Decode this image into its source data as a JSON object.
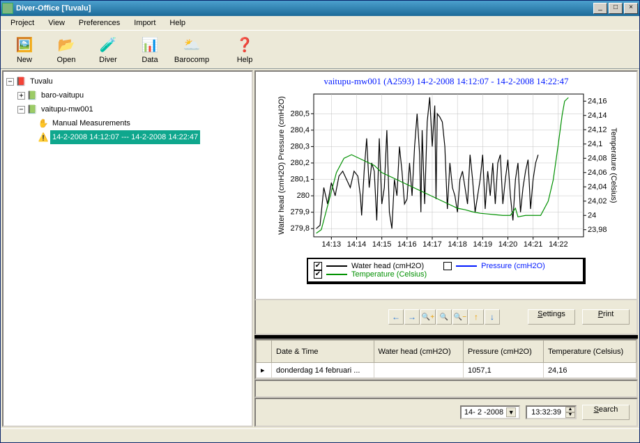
{
  "window": {
    "title": "Diver-Office [Tuvalu]",
    "min_label": "_",
    "max_label": "□",
    "close_label": "×"
  },
  "menu": {
    "items": [
      "Project",
      "View",
      "Preferences",
      "Import",
      "Help"
    ]
  },
  "toolbar": {
    "items": [
      {
        "label": "New",
        "icon": "🖼️",
        "color": "#5aa02c"
      },
      {
        "label": "Open",
        "icon": "📂",
        "color": "#e8b030"
      },
      {
        "label": "Diver",
        "icon": "🧪",
        "color": "#888"
      },
      {
        "label": "Data",
        "icon": "📊",
        "color": "#4a90d9"
      },
      {
        "label": "Barocomp",
        "icon": "🌥️",
        "color": "#e0a020"
      },
      {
        "label": "Help",
        "icon": "❓",
        "color": "#1e6fd6"
      }
    ]
  },
  "tree": {
    "root": {
      "label": "Tuvalu",
      "icon": "📁"
    },
    "n1": {
      "label": "baro-vaitupu",
      "icon": "📁",
      "tw": "+"
    },
    "n2": {
      "label": "vaitupu-mw001",
      "icon": "📁",
      "tw": "−"
    },
    "n2a": {
      "label": "Manual Measurements",
      "icon": "✋"
    },
    "n2b": {
      "label": "14-2-2008 14:12:07  ---  14-2-2008 14:22:47",
      "icon": "⚠️",
      "selected": true
    }
  },
  "chart": {
    "title": "vaitupu-mw001 (A2593)   14-2-2008 14:12:07  -  14-2-2008 14:22:47",
    "title_color": "#0018ff",
    "y1_label": "Water head (cmH2O) Pressure (cmH2O)",
    "y2_label": "Temperature (Celsius)",
    "y1_ticks": [
      "279,8",
      "279,9",
      "280",
      "280,1",
      "280,2",
      "280,3",
      "280,4",
      "280,5"
    ],
    "y1_lim": [
      279.75,
      280.62
    ],
    "y2_ticks": [
      "23,98",
      "24",
      "24,02",
      "24,04",
      "24,06",
      "24,08",
      "24,1",
      "24,12",
      "24,14",
      "24,16"
    ],
    "y2_lim": [
      23.97,
      24.17
    ],
    "x_ticks": [
      "14:13",
      "14:14",
      "14:15",
      "14:16",
      "14:17",
      "14:18",
      "14:19",
      "14:20",
      "14:21",
      "14:22"
    ],
    "x_lim": [
      0,
      10.7
    ],
    "colors": {
      "waterhead": "#000000",
      "pressure": "#0018ff",
      "temperature": "#009000",
      "grid": "#c0c0c0",
      "bg": "#ffffff",
      "axis": "#000000"
    },
    "series_waterhead": [
      [
        0.1,
        279.8
      ],
      [
        0.25,
        279.82
      ],
      [
        0.4,
        280.05
      ],
      [
        0.55,
        279.95
      ],
      [
        0.7,
        280.08
      ],
      [
        0.85,
        280.0
      ],
      [
        1.0,
        280.12
      ],
      [
        1.15,
        280.15
      ],
      [
        1.3,
        280.1
      ],
      [
        1.45,
        280.05
      ],
      [
        1.6,
        280.15
      ],
      [
        1.75,
        280.12
      ],
      [
        1.85,
        280.0
      ],
      [
        1.9,
        279.88
      ],
      [
        2.0,
        280.15
      ],
      [
        2.1,
        280.35
      ],
      [
        2.2,
        280.05
      ],
      [
        2.3,
        280.2
      ],
      [
        2.4,
        280.15
      ],
      [
        2.5,
        279.85
      ],
      [
        2.6,
        280.35
      ],
      [
        2.7,
        279.95
      ],
      [
        2.8,
        280.05
      ],
      [
        2.9,
        280.4
      ],
      [
        3.0,
        279.9
      ],
      [
        3.1,
        279.8
      ],
      [
        3.2,
        280.1
      ],
      [
        3.3,
        280.0
      ],
      [
        3.4,
        280.3
      ],
      [
        3.5,
        280.15
      ],
      [
        3.6,
        279.95
      ],
      [
        3.7,
        279.98
      ],
      [
        3.8,
        280.2
      ],
      [
        3.9,
        280.0
      ],
      [
        4.0,
        280.3
      ],
      [
        4.1,
        280.5
      ],
      [
        4.2,
        280.25
      ],
      [
        4.25,
        279.9
      ],
      [
        4.3,
        280.4
      ],
      [
        4.4,
        279.95
      ],
      [
        4.5,
        280.45
      ],
      [
        4.6,
        280.6
      ],
      [
        4.7,
        280.3
      ],
      [
        4.8,
        280.55
      ],
      [
        4.85,
        279.98
      ],
      [
        4.9,
        280.5
      ],
      [
        5.0,
        280.48
      ],
      [
        5.1,
        280.45
      ],
      [
        5.2,
        280.3
      ],
      [
        5.3,
        279.92
      ],
      [
        5.4,
        280.2
      ],
      [
        5.5,
        280.05
      ],
      [
        5.6,
        280.0
      ],
      [
        5.7,
        279.9
      ],
      [
        5.8,
        280.1
      ],
      [
        5.9,
        280.15
      ],
      [
        6.0,
        280.05
      ],
      [
        6.1,
        279.95
      ],
      [
        6.2,
        280.25
      ],
      [
        6.3,
        280.1
      ],
      [
        6.4,
        279.9
      ],
      [
        6.5,
        280.0
      ],
      [
        6.6,
        280.1
      ],
      [
        6.7,
        280.25
      ],
      [
        6.8,
        279.92
      ],
      [
        6.9,
        280.15
      ],
      [
        7.0,
        280.0
      ],
      [
        7.1,
        280.2
      ],
      [
        7.2,
        279.95
      ],
      [
        7.3,
        280.2
      ],
      [
        7.4,
        280.25
      ],
      [
        7.5,
        279.95
      ],
      [
        7.6,
        280.1
      ],
      [
        7.7,
        280.22
      ],
      [
        7.8,
        280.0
      ],
      [
        7.9,
        279.85
      ],
      [
        8.0,
        280.1
      ],
      [
        8.1,
        280.2
      ],
      [
        8.2,
        279.9
      ],
      [
        8.3,
        280.05
      ],
      [
        8.4,
        280.15
      ],
      [
        8.5,
        280.22
      ],
      [
        8.6,
        279.92
      ],
      [
        8.7,
        280.1
      ],
      [
        8.8,
        280.2
      ],
      [
        8.9,
        280.25
      ]
    ],
    "series_temperature": [
      [
        0.1,
        23.975
      ],
      [
        0.3,
        23.98
      ],
      [
        0.6,
        24.02
      ],
      [
        0.9,
        24.06
      ],
      [
        1.2,
        24.08
      ],
      [
        1.5,
        24.085
      ],
      [
        1.8,
        24.08
      ],
      [
        2.1,
        24.075
      ],
      [
        2.4,
        24.07
      ],
      [
        2.7,
        24.06
      ],
      [
        3.0,
        24.055
      ],
      [
        3.3,
        24.05
      ],
      [
        3.6,
        24.045
      ],
      [
        3.9,
        24.04
      ],
      [
        4.2,
        24.035
      ],
      [
        4.5,
        24.03
      ],
      [
        4.8,
        24.025
      ],
      [
        5.1,
        24.02
      ],
      [
        5.4,
        24.015
      ],
      [
        5.7,
        24.01
      ],
      [
        6.0,
        24.008
      ],
      [
        6.3,
        24.005
      ],
      [
        6.6,
        24.003
      ],
      [
        6.9,
        24.002
      ],
      [
        7.2,
        24.001
      ],
      [
        7.5,
        24.0
      ],
      [
        7.8,
        24.0
      ],
      [
        8.0,
        24.01
      ],
      [
        8.1,
        23.998
      ],
      [
        8.4,
        24.0
      ],
      [
        8.7,
        24.0
      ],
      [
        9.0,
        24.0
      ],
      [
        9.3,
        24.02
      ],
      [
        9.5,
        24.05
      ],
      [
        9.7,
        24.1
      ],
      [
        9.85,
        24.14
      ],
      [
        9.95,
        24.16
      ],
      [
        10.1,
        24.165
      ]
    ],
    "legend": {
      "waterhead": {
        "checked": true,
        "label": "Water head (cmH2O)",
        "color": "#000000"
      },
      "pressure": {
        "checked": false,
        "label": "Pressure (cmH2O)",
        "color": "#0018ff"
      },
      "temperature": {
        "checked": true,
        "label": "Temperature (Celsius)",
        "color": "#009000"
      }
    }
  },
  "nav": {
    "icons": [
      "←",
      "→",
      "🔍+",
      "🔍",
      "🔍−",
      "↑",
      "↓"
    ],
    "colors": [
      "#1e6fd6",
      "#1e6fd6",
      "#e89c00",
      "#1e6fd6",
      "#e89c00",
      "#e89c00",
      "#1e6fd6"
    ],
    "settings_label": "Settings",
    "print_label": "Print"
  },
  "table": {
    "headers": [
      "",
      "Date & Time",
      "Water head (cmH2O)",
      "Pressure (cmH2O)",
      "Temperature (Celsius)"
    ],
    "row": [
      "▸",
      "donderdag 14 februari ...",
      "",
      "1057,1",
      "24,16"
    ]
  },
  "search": {
    "date": "14- 2 -2008",
    "time": "13:32:39",
    "button": "Search"
  }
}
